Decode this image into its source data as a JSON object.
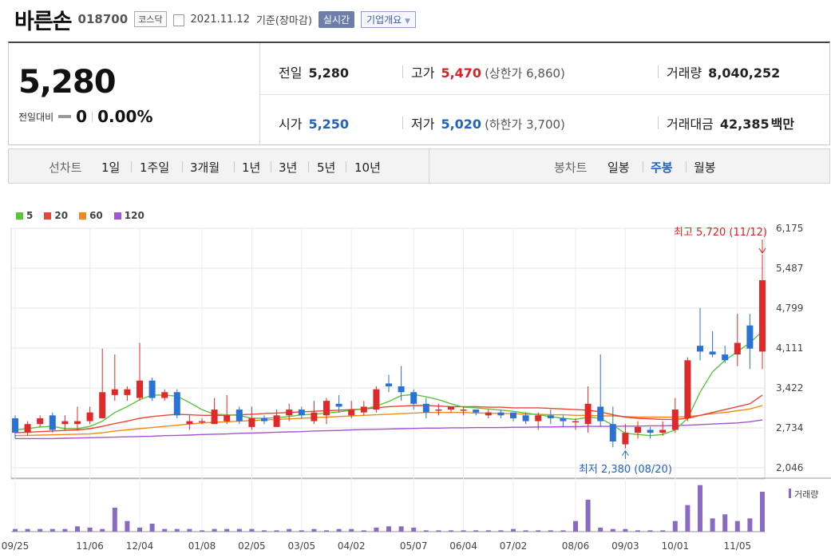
{
  "header": {
    "name": "바른손",
    "code": "018700",
    "market": "코스닥",
    "date": "2021.11.12",
    "date_suffix": "기준(장마감)",
    "realtime_button": "실시간",
    "company_button": "기업개요"
  },
  "quote": {
    "price": "5,280",
    "change_label": "전일대비",
    "change": "0",
    "change_rate": "0.00%",
    "prev_label": "전일",
    "prev": "5,280",
    "high_label": "고가",
    "high": "5,470",
    "upper_limit": "(상한가 6,860)",
    "volume_label": "거래량",
    "volume": "8,040,252",
    "open_label": "시가",
    "open": "5,250",
    "low_label": "저가",
    "low": "5,020",
    "lower_limit": "(하한가 3,700)",
    "amount_label": "거래대금",
    "amount": "42,385",
    "amount_unit": "백만"
  },
  "periods": {
    "line_chart_label": "선차트",
    "line_options": [
      "1일",
      "1주일",
      "3개월",
      "1년",
      "3년",
      "5년",
      "10년"
    ],
    "candle_chart_label": "봉차트",
    "candle_options": [
      "일봉",
      "주봉",
      "월봉"
    ],
    "candle_selected": 1
  },
  "colors": {
    "up": "#e02a2a",
    "down": "#2a72d4",
    "ma5": "#5cc43a",
    "ma20": "#e8463a",
    "ma60": "#f08a1c",
    "ma120": "#a455d4"
  },
  "chart_data": {
    "type": "candlestick",
    "legend": [
      "5",
      "20",
      "60",
      "120"
    ],
    "y_ticks": [
      "6,175",
      "5,487",
      "4,799",
      "4,111",
      "3,422",
      "2,734",
      "2,046"
    ],
    "ylim": [
      2046,
      6175
    ],
    "x_labels": [
      "09/25",
      "11/06",
      "12/04",
      "01/08",
      "02/05",
      "03/05",
      "04/02",
      "05/07",
      "06/04",
      "07/02",
      "08/06",
      "09/03",
      "10/01",
      "11/05"
    ],
    "x_label_index": [
      0,
      6,
      10,
      15,
      19,
      23,
      27,
      32,
      36,
      40,
      45,
      49,
      53,
      58
    ],
    "high_annotation": "최고 5,720 (11/12)",
    "low_annotation": "최저 2,380 (08/20)",
    "volume_label": "거래량",
    "candles": [
      [
        2900,
        2950,
        2550,
        2650
      ],
      [
        2650,
        2850,
        2600,
        2800
      ],
      [
        2800,
        2950,
        2750,
        2900
      ],
      [
        2950,
        3000,
        2650,
        2700
      ],
      [
        2800,
        2950,
        2700,
        2850
      ],
      [
        2800,
        3100,
        2700,
        2850
      ],
      [
        2850,
        3100,
        2800,
        3000
      ],
      [
        2900,
        4100,
        2900,
        3350
      ],
      [
        3300,
        4000,
        3200,
        3400
      ],
      [
        3300,
        3450,
        3200,
        3400
      ],
      [
        3250,
        4200,
        3200,
        3550
      ],
      [
        3550,
        3600,
        3200,
        3250
      ],
      [
        3250,
        3400,
        3200,
        3350
      ],
      [
        3350,
        3400,
        2900,
        2950
      ],
      [
        2800,
        2950,
        2700,
        2850
      ],
      [
        2850,
        2900,
        2800,
        2850
      ],
      [
        2800,
        3250,
        2800,
        3050
      ],
      [
        2850,
        3300,
        2800,
        2950
      ],
      [
        3050,
        3100,
        2800,
        2850
      ],
      [
        2750,
        3100,
        2700,
        2900
      ],
      [
        2900,
        2950,
        2800,
        2850
      ],
      [
        2750,
        3050,
        2750,
        2950
      ],
      [
        2950,
        3150,
        2850,
        3050
      ],
      [
        3050,
        3100,
        2900,
        2950
      ],
      [
        2850,
        3200,
        2800,
        3000
      ],
      [
        2950,
        3250,
        2800,
        3200
      ],
      [
        3150,
        3300,
        3000,
        3100
      ],
      [
        2950,
        3200,
        2900,
        3050
      ],
      [
        3000,
        3200,
        2950,
        3100
      ],
      [
        3050,
        3450,
        3000,
        3400
      ],
      [
        3500,
        3650,
        3350,
        3450
      ],
      [
        3450,
        3800,
        3200,
        3350
      ],
      [
        3350,
        3400,
        3050,
        3150
      ],
      [
        3150,
        3250,
        2900,
        3000
      ],
      [
        3050,
        3150,
        2950,
        3050
      ],
      [
        3050,
        3100,
        3000,
        3100
      ],
      [
        3050,
        3100,
        2950,
        3050
      ],
      [
        3050,
        3050,
        2950,
        3000
      ],
      [
        2950,
        3050,
        2900,
        3000
      ],
      [
        3000,
        3050,
        2900,
        2950
      ],
      [
        3000,
        3000,
        2850,
        2900
      ],
      [
        2950,
        3000,
        2800,
        2850
      ],
      [
        2850,
        3000,
        2700,
        2950
      ],
      [
        2950,
        3050,
        2800,
        2900
      ],
      [
        2900,
        2950,
        2750,
        2850
      ],
      [
        2850,
        2900,
        2700,
        2850
      ],
      [
        2800,
        3450,
        2650,
        3150
      ],
      [
        3100,
        4000,
        2750,
        2850
      ],
      [
        2800,
        3100,
        2400,
        2500
      ],
      [
        2450,
        2800,
        2380,
        2650
      ],
      [
        2650,
        2850,
        2550,
        2750
      ],
      [
        2700,
        2750,
        2550,
        2650
      ],
      [
        2650,
        2850,
        2600,
        2700
      ],
      [
        2700,
        3250,
        2650,
        3050
      ],
      [
        2900,
        3950,
        2850,
        3900
      ],
      [
        4150,
        4800,
        3900,
        4050
      ],
      [
        4050,
        4400,
        3950,
        4000
      ],
      [
        4000,
        4150,
        3850,
        3900
      ],
      [
        4000,
        4700,
        3800,
        4200
      ],
      [
        4500,
        4700,
        3750,
        4100
      ],
      [
        4050,
        5720,
        3750,
        5280
      ]
    ],
    "ma5": [
      2700,
      2720,
      2750,
      2760,
      2720,
      2720,
      2760,
      2850,
      3000,
      3100,
      3220,
      3300,
      3300,
      3280,
      3170,
      3050,
      2970,
      2960,
      2950,
      2900,
      2900,
      2910,
      2930,
      2960,
      2970,
      2990,
      3010,
      3040,
      3060,
      3110,
      3190,
      3290,
      3310,
      3270,
      3220,
      3150,
      3090,
      3080,
      3060,
      3040,
      3020,
      2990,
      2960,
      2930,
      2900,
      2880,
      2920,
      2900,
      2780,
      2640,
      2620,
      2600,
      2620,
      2700,
      2900,
      3350,
      3700,
      3900,
      4050,
      4200,
      4400
    ],
    "ma20": [
      2650,
      2660,
      2670,
      2680,
      2690,
      2700,
      2720,
      2760,
      2810,
      2850,
      2900,
      2930,
      2950,
      2970,
      2960,
      2950,
      2950,
      2950,
      2960,
      2970,
      2980,
      2990,
      3000,
      3010,
      3020,
      3030,
      3040,
      3050,
      3060,
      3080,
      3100,
      3110,
      3120,
      3120,
      3110,
      3100,
      3100,
      3100,
      3090,
      3090,
      3080,
      3080,
      3080,
      3070,
      3060,
      3050,
      3040,
      3010,
      2960,
      2920,
      2900,
      2890,
      2880,
      2880,
      2900,
      2950,
      3000,
      3050,
      3100,
      3150,
      3300
    ],
    "ma60": [
      2600,
      2605,
      2610,
      2615,
      2620,
      2625,
      2630,
      2650,
      2680,
      2700,
      2720,
      2740,
      2760,
      2780,
      2800,
      2820,
      2830,
      2840,
      2850,
      2860,
      2870,
      2880,
      2890,
      2900,
      2910,
      2920,
      2930,
      2940,
      2950,
      2960,
      2970,
      2980,
      2990,
      3000,
      3000,
      3000,
      3000,
      2990,
      2990,
      2980,
      2980,
      2970,
      2970,
      2960,
      2960,
      2950,
      2950,
      2940,
      2940,
      2930,
      2920,
      2920,
      2920,
      2920,
      2930,
      2950,
      2980,
      3000,
      3030,
      3060,
      3120
    ],
    "ma120": [
      2550,
      2550,
      2550,
      2550,
      2555,
      2560,
      2565,
      2570,
      2575,
      2580,
      2585,
      2590,
      2600,
      2605,
      2610,
      2620,
      2625,
      2630,
      2640,
      2645,
      2650,
      2660,
      2665,
      2670,
      2680,
      2685,
      2690,
      2700,
      2705,
      2710,
      2715,
      2720,
      2725,
      2730,
      2730,
      2735,
      2735,
      2740,
      2740,
      2740,
      2745,
      2745,
      2750,
      2750,
      2755,
      2755,
      2760,
      2760,
      2760,
      2765,
      2765,
      2770,
      2770,
      2775,
      2780,
      2790,
      2800,
      2810,
      2820,
      2840,
      2870
    ],
    "volume": [
      2,
      2,
      2,
      2,
      2,
      4,
      3,
      2,
      18,
      8,
      3,
      6,
      2,
      2,
      2,
      1,
      2,
      2,
      2,
      2,
      1,
      1,
      2,
      1,
      2,
      1,
      2,
      2,
      1,
      3,
      4,
      4,
      3,
      1,
      1,
      1,
      1,
      1,
      1,
      1,
      2,
      1,
      1,
      1,
      1,
      8,
      24,
      3,
      2,
      2,
      1,
      1,
      1,
      8,
      20,
      35,
      10,
      13,
      8,
      10,
      30
    ]
  }
}
